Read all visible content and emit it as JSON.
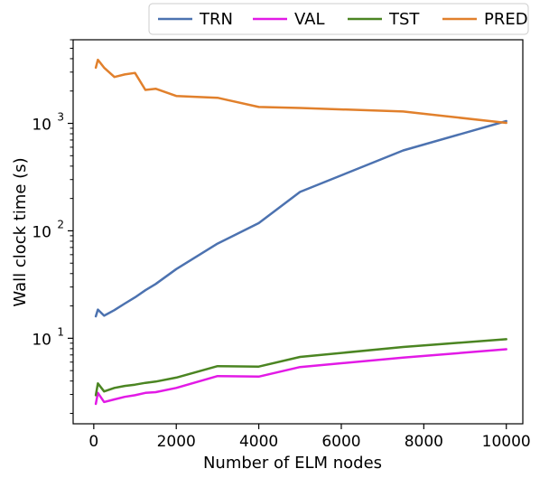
{
  "chart_data": {
    "type": "line",
    "title": "",
    "xlabel": "Number of ELM nodes",
    "ylabel": "Wall clock time (s)",
    "xlim": [
      -500,
      10400
    ],
    "ylim": [
      1.6,
      6000
    ],
    "yscale": "log",
    "grid": false,
    "legend_position": "top",
    "x_ticks": [
      0,
      2000,
      4000,
      6000,
      8000,
      10000
    ],
    "x_tick_labels": [
      "0",
      "2000",
      "4000",
      "6000",
      "8000",
      "10000"
    ],
    "y_ticks": [
      10,
      100,
      1000
    ],
    "y_tick_base": "10",
    "y_tick_exponents": [
      "1",
      "2",
      "3"
    ],
    "series": [
      {
        "name": "TRN",
        "color": "#4c72b0",
        "x": [
          50,
          100,
          250,
          500,
          750,
          1000,
          1250,
          1500,
          2000,
          3000,
          4000,
          5000,
          7500,
          10000
        ],
        "y": [
          16,
          18.5,
          16.2,
          18.3,
          21,
          24,
          28,
          32,
          44,
          76,
          118,
          230,
          560,
          1050
        ]
      },
      {
        "name": "VAL",
        "color": "#e21ae6",
        "x": [
          50,
          100,
          250,
          500,
          750,
          1000,
          1250,
          1500,
          2000,
          3000,
          4000,
          5000,
          7500,
          10000
        ],
        "y": [
          2.45,
          3.1,
          2.55,
          2.7,
          2.85,
          2.95,
          3.1,
          3.15,
          3.45,
          4.45,
          4.4,
          5.4,
          6.6,
          7.9
        ]
      },
      {
        "name": "TST",
        "color": "#4b8522",
        "x": [
          50,
          100,
          250,
          500,
          750,
          1000,
          1250,
          1500,
          2000,
          3000,
          4000,
          5000,
          7500,
          10000
        ],
        "y": [
          2.95,
          3.8,
          3.2,
          3.45,
          3.6,
          3.7,
          3.85,
          3.95,
          4.3,
          5.5,
          5.45,
          6.7,
          8.3,
          9.8
        ]
      },
      {
        "name": "PRED",
        "color": "#e1802c",
        "x": [
          50,
          100,
          250,
          500,
          750,
          1000,
          1250,
          1500,
          2000,
          3000,
          4000,
          5000,
          7500,
          10000
        ],
        "y": [
          3300,
          3900,
          3300,
          2700,
          2850,
          2950,
          2050,
          2100,
          1800,
          1730,
          1420,
          1390,
          1290,
          1010
        ]
      }
    ]
  }
}
